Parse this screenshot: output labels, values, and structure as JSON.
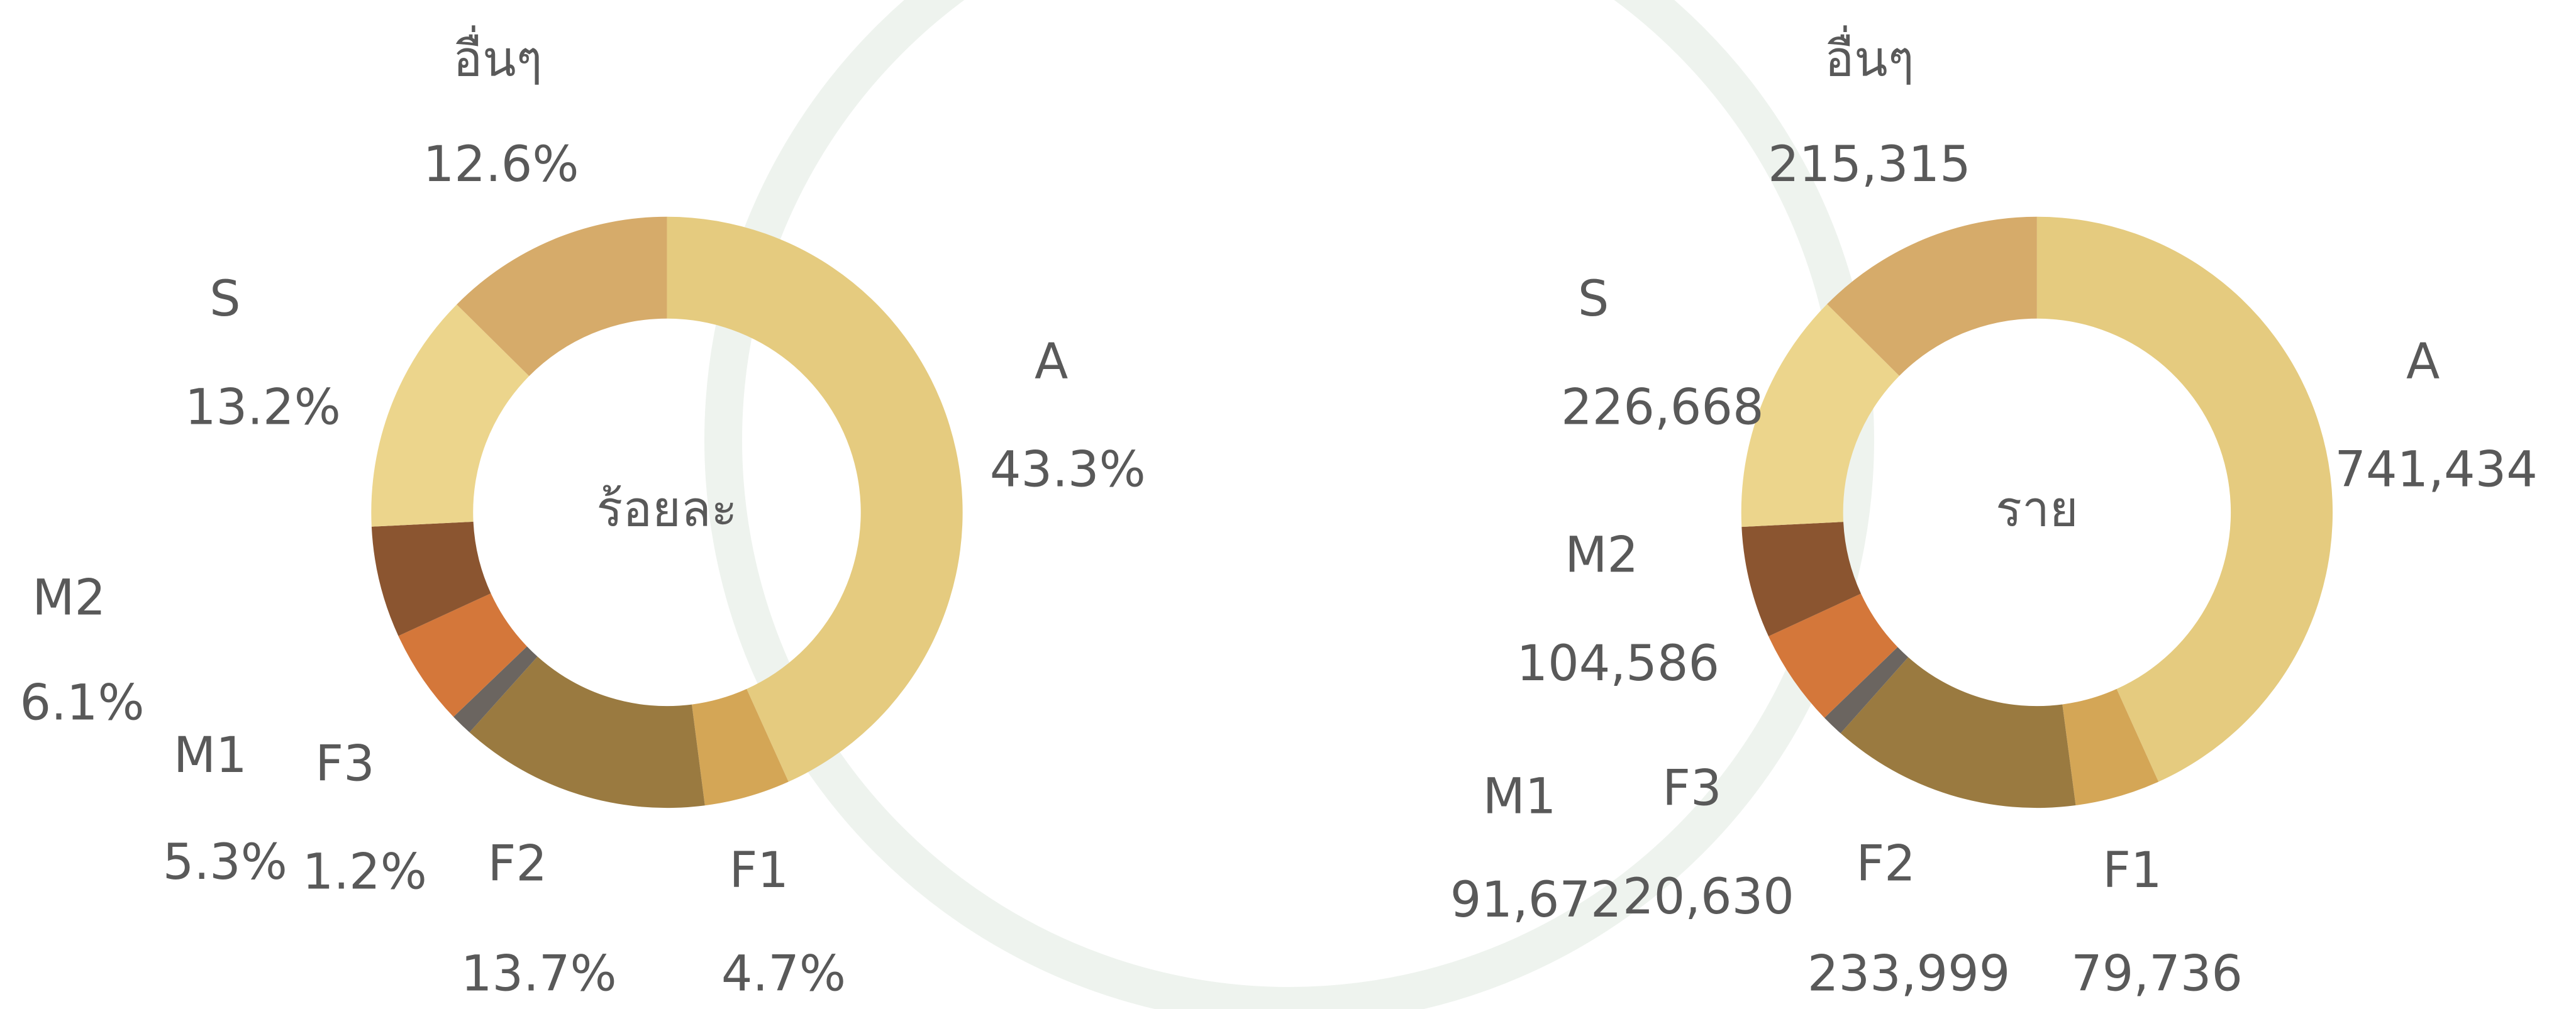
{
  "chart_data": [
    {
      "type": "donut",
      "title": "ร้อยละ",
      "categories": [
        "A",
        "F1",
        "F2",
        "F3",
        "M1",
        "M2",
        "S",
        "อื่นๆ"
      ],
      "values": [
        43.3,
        4.7,
        13.7,
        1.2,
        5.3,
        6.1,
        13.2,
        12.6
      ],
      "value_labels": [
        "43.3%",
        "4.7%",
        "13.7%",
        "1.2%",
        "5.3%",
        "6.1%",
        "13.2%",
        "12.6%"
      ],
      "colors": [
        "#e5cb7f",
        "#d4a656",
        "#9a7a40",
        "#6b6560",
        "#d4773a",
        "#8b5530",
        "#ecd58c",
        "#d6ab6a"
      ]
    },
    {
      "type": "donut",
      "title": "ราย",
      "categories": [
        "A",
        "F1",
        "F2",
        "F3",
        "M1",
        "M2",
        "S",
        "อื่นๆ"
      ],
      "values": [
        741434,
        79736,
        233999,
        20630,
        91672,
        104586,
        226668,
        215315
      ],
      "value_labels": [
        "741,434",
        "79,736",
        "233,999",
        "20,630",
        "91,672",
        "104,586",
        "226,668",
        "215,315"
      ],
      "colors": [
        "#e5cb7f",
        "#d4a656",
        "#9a7a40",
        "#6b6560",
        "#d4773a",
        "#8b5530",
        "#ecd58c",
        "#d6ab6a"
      ]
    }
  ]
}
